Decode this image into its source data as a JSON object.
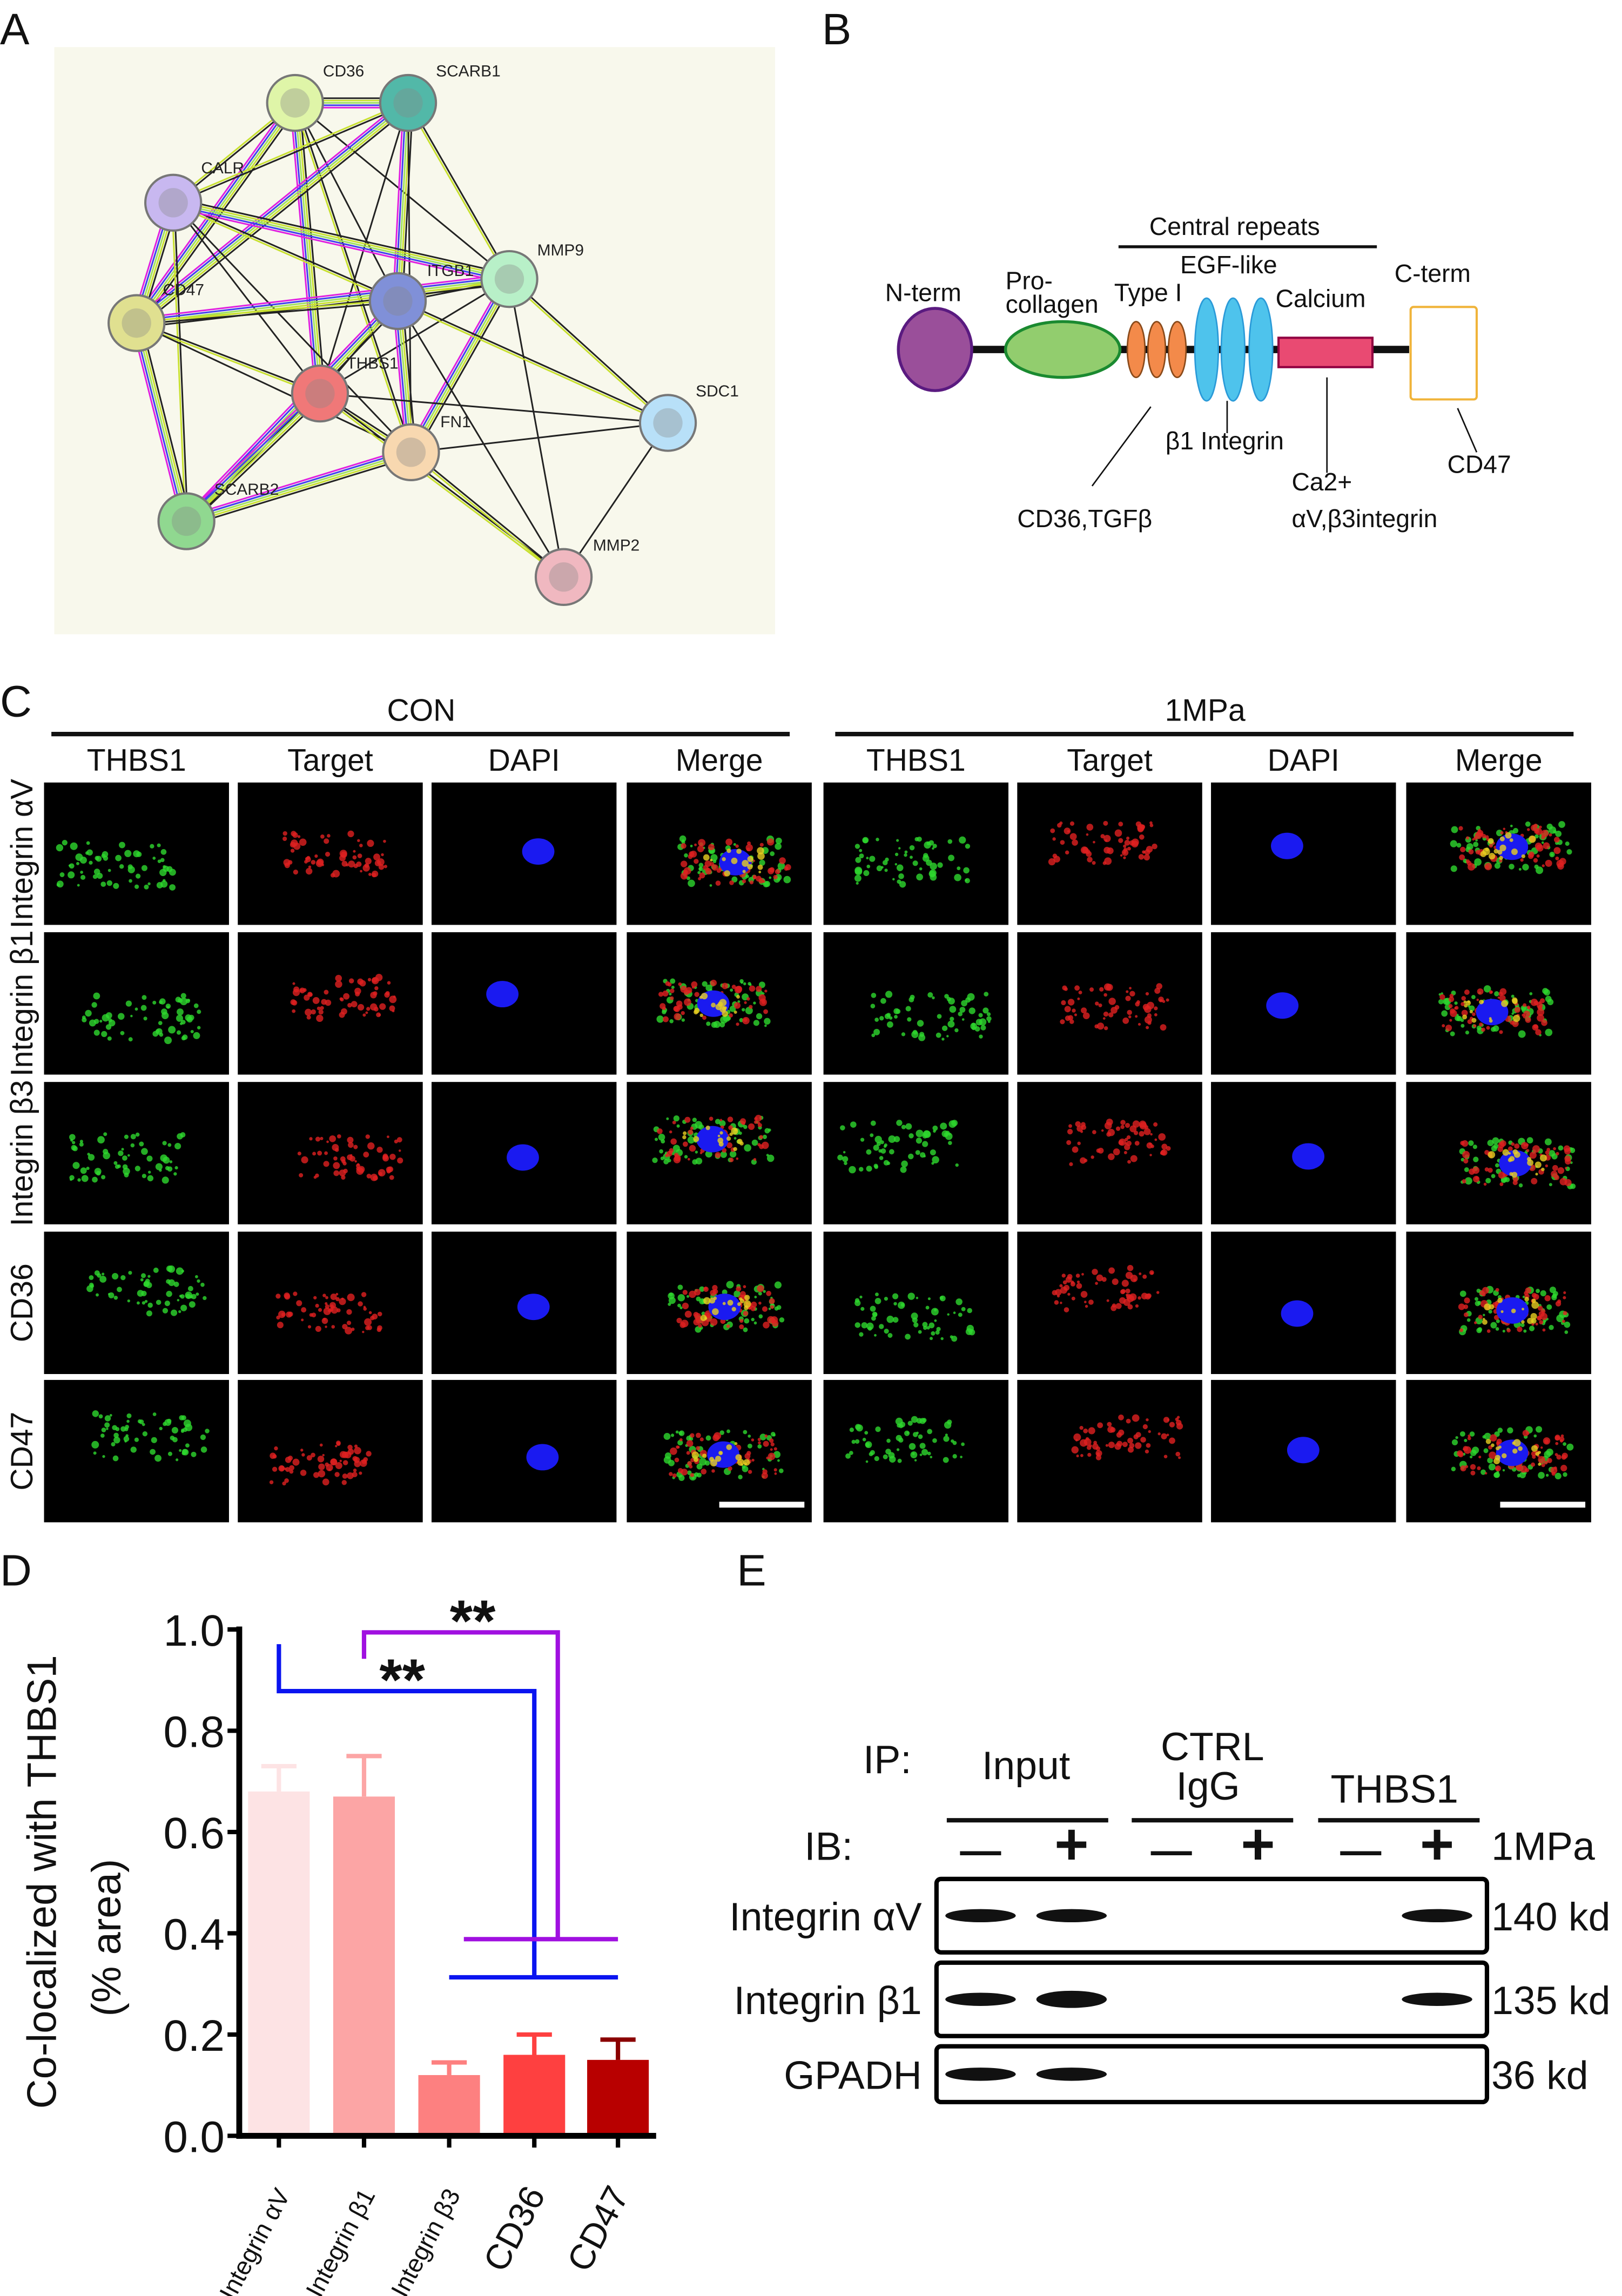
{
  "panel_labels": {
    "a": "A",
    "b": "B",
    "c": "C",
    "d": "D",
    "e": "E"
  },
  "panel_a": {
    "background": "#f8f8ec",
    "nodes": [
      {
        "name": "CD36",
        "color": "#dff5a8"
      },
      {
        "name": "SCARB1",
        "color": "#52b8a8"
      },
      {
        "name": "CALR",
        "color": "#c8b8f0"
      },
      {
        "name": "MMP9",
        "color": "#b8f0c8"
      },
      {
        "name": "ITGB1",
        "color": "#8090d8"
      },
      {
        "name": "CD47",
        "color": "#e0e090"
      },
      {
        "name": "THBS1",
        "color": "#f07878"
      },
      {
        "name": "FN1",
        "color": "#f8d8b0"
      },
      {
        "name": "SDC1",
        "color": "#b8e0f8"
      },
      {
        "name": "SCARB2",
        "color": "#90d890"
      },
      {
        "name": "MMP2",
        "color": "#f0b8c0"
      }
    ],
    "edges": [
      [
        "CD36",
        "SCARB1"
      ],
      [
        "CD36",
        "CALR"
      ],
      [
        "CD36",
        "ITGB1"
      ],
      [
        "CD36",
        "THBS1"
      ],
      [
        "CD36",
        "FN1"
      ],
      [
        "CD36",
        "MMP9"
      ],
      [
        "CD36",
        "CD47"
      ],
      [
        "SCARB1",
        "CALR"
      ],
      [
        "SCARB1",
        "THBS1"
      ],
      [
        "SCARB1",
        "ITGB1"
      ],
      [
        "SCARB1",
        "MMP9"
      ],
      [
        "SCARB1",
        "FN1"
      ],
      [
        "SCARB1",
        "CD47"
      ],
      [
        "CALR",
        "ITGB1"
      ],
      [
        "CALR",
        "THBS1"
      ],
      [
        "CALR",
        "CD47"
      ],
      [
        "CALR",
        "SCARB2"
      ],
      [
        "CALR",
        "FN1"
      ],
      [
        "CALR",
        "MMP9"
      ],
      [
        "MMP9",
        "ITGB1"
      ],
      [
        "MMP9",
        "THBS1"
      ],
      [
        "MMP9",
        "FN1"
      ],
      [
        "MMP9",
        "SDC1"
      ],
      [
        "MMP9",
        "MMP2"
      ],
      [
        "MMP9",
        "CD47"
      ],
      [
        "ITGB1",
        "CD47"
      ],
      [
        "ITGB1",
        "THBS1"
      ],
      [
        "ITGB1",
        "FN1"
      ],
      [
        "ITGB1",
        "SDC1"
      ],
      [
        "ITGB1",
        "MMP2"
      ],
      [
        "ITGB1",
        "SCARB2"
      ],
      [
        "CD47",
        "THBS1"
      ],
      [
        "CD47",
        "FN1"
      ],
      [
        "CD47",
        "SCARB2"
      ],
      [
        "THBS1",
        "FN1"
      ],
      [
        "THBS1",
        "SDC1"
      ],
      [
        "THBS1",
        "SCARB2"
      ],
      [
        "THBS1",
        "MMP2"
      ],
      [
        "FN1",
        "SDC1"
      ],
      [
        "FN1",
        "SCARB2"
      ],
      [
        "FN1",
        "MMP2"
      ],
      [
        "SDC1",
        "MMP2"
      ]
    ]
  },
  "panel_b": {
    "central_repeats": "Central repeats",
    "egf_like": "EGF-like",
    "n_term": "N-term",
    "pro": "Pro-",
    "collagen": "collagen",
    "type1": "Type I",
    "calcium": "Calcium",
    "c_term": "C-term",
    "beta1": "β1 Integrin",
    "cd36": "CD36,TGFβ",
    "ca2": "Ca2+",
    "av_b3": "αV,β3integrin",
    "cd47": "CD47",
    "colors": {
      "nterm": "#9a4f9a",
      "procollagen": "#92cd6e",
      "type1": "#f38a4a",
      "egf": "#4ec3ec",
      "calcium": "#e94a72",
      "cterm": "#f0b43a"
    }
  },
  "panel_c": {
    "groups": [
      "CON",
      "1MPa"
    ],
    "columns": [
      "THBS1",
      "Target",
      "DAPI",
      "Merge",
      "THBS1",
      "Target",
      "DAPI",
      "Merge"
    ],
    "rows": [
      "Integrin αV",
      "Integrin β1",
      "Integrin β3",
      "CD36",
      "CD47"
    ]
  },
  "chart_data": {
    "type": "bar",
    "ylabel": "Co-localized with THBS1",
    "ylabel2": "(% area)",
    "categories": [
      "Integrin αV",
      "Integrin β1",
      "Integrin β3",
      "CD36",
      "CD47"
    ],
    "values": [
      0.68,
      0.67,
      0.12,
      0.16,
      0.15
    ],
    "errors": [
      0.05,
      0.08,
      0.025,
      0.04,
      0.04
    ],
    "colors": [
      "#fde3e4",
      "#fca5a5",
      "#fd8080",
      "#fe4040",
      "#b80000"
    ],
    "error_colors": [
      "#fde3e4",
      "#fca5a5",
      "#fd8080",
      "#fe4040",
      "#8a0000"
    ],
    "ylim": [
      0,
      1.0
    ],
    "yticks": [
      "0.0",
      "0.2",
      "0.4",
      "0.6",
      "0.8",
      "1.0"
    ],
    "significance": [
      {
        "from": "Integrin αV",
        "to": [
          "Integrin β3",
          "CD36",
          "CD47"
        ],
        "label": "**",
        "color": "#0a14f0"
      },
      {
        "from": "Integrin β1",
        "to": [
          "Integrin β3",
          "CD36",
          "CD47"
        ],
        "label": "**",
        "color": "#a010e0"
      }
    ]
  },
  "panel_e": {
    "ip_label": "IP:",
    "ib_label": "IB:",
    "groups": [
      "Input",
      "CTRL",
      "IgG",
      "THBS1"
    ],
    "signs": [
      "—",
      "+",
      "—",
      "+",
      "—",
      "+"
    ],
    "condition": "1MPa",
    "blots": [
      {
        "name": "Integrin αV",
        "size": "140 kd",
        "bands": [
          1,
          1,
          0,
          0,
          0,
          1
        ]
      },
      {
        "name": "Integrin β1",
        "size": "135 kd",
        "bands": [
          1,
          1.3,
          0,
          0,
          0,
          1
        ]
      },
      {
        "name": "GPADH",
        "size": "36 kd",
        "bands": [
          1,
          1,
          0,
          0,
          0,
          0
        ]
      }
    ]
  }
}
